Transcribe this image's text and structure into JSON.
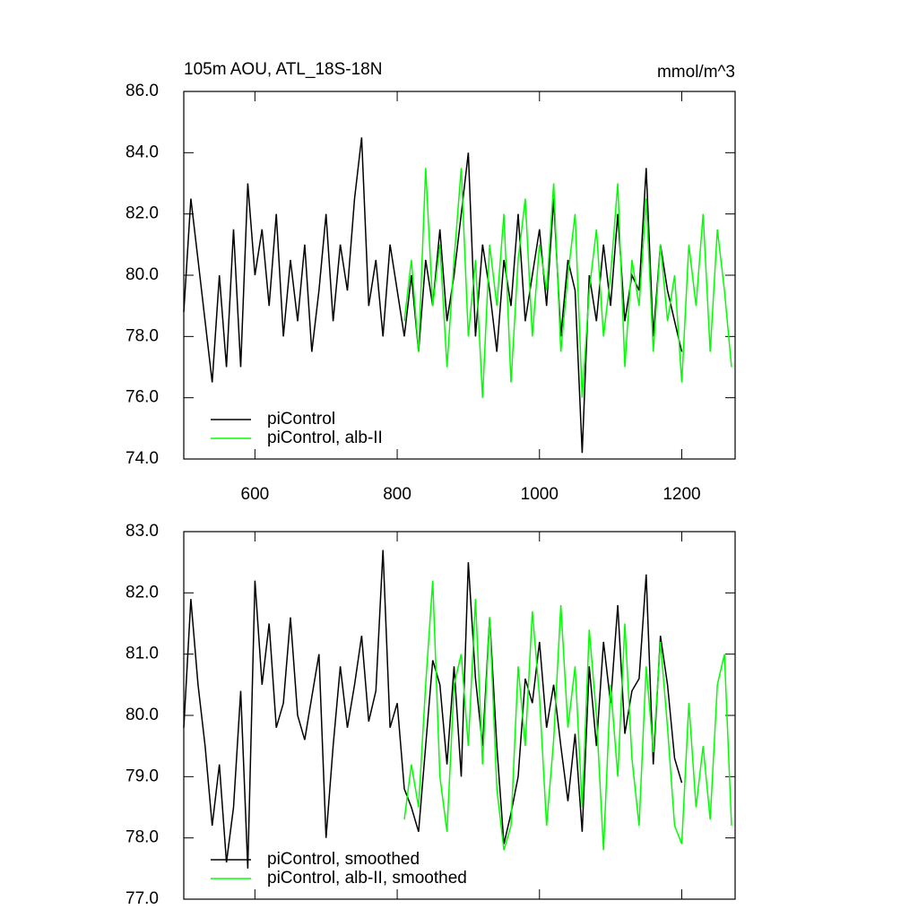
{
  "chart_data": [
    {
      "type": "line",
      "title": "105m AOU, ATL_18S-18N",
      "units": "mmol/m^3",
      "xlim": [
        500,
        1275
      ],
      "ylim": [
        74,
        86
      ],
      "xticks": [
        600,
        800,
        1000,
        1200
      ],
      "yticks": [
        {
          "value": 74,
          "label": "74.0"
        },
        {
          "value": 76,
          "label": "76.0"
        },
        {
          "value": 78,
          "label": "78.0"
        },
        {
          "value": 80,
          "label": "80.0"
        },
        {
          "value": 82,
          "label": "82.0"
        },
        {
          "value": 84,
          "label": "84.0"
        },
        {
          "value": 86,
          "label": "86.0"
        }
      ],
      "legend": "lower left",
      "series": [
        {
          "name": "piControl",
          "color": "#000000",
          "x": [
            500,
            510,
            520,
            530,
            540,
            550,
            560,
            570,
            580,
            590,
            600,
            610,
            620,
            630,
            640,
            650,
            660,
            670,
            680,
            690,
            700,
            710,
            720,
            730,
            740,
            750,
            760,
            770,
            780,
            790,
            800,
            810,
            820,
            830,
            840,
            850,
            860,
            870,
            880,
            890,
            900,
            910,
            920,
            930,
            940,
            950,
            960,
            970,
            980,
            990,
            1000,
            1010,
            1020,
            1030,
            1040,
            1050,
            1060,
            1070,
            1080,
            1090,
            1100,
            1110,
            1120,
            1130,
            1140,
            1150,
            1160,
            1170,
            1180,
            1190,
            1200
          ],
          "values": [
            78.8,
            82.5,
            80.5,
            78.5,
            76.5,
            80.0,
            77.0,
            81.5,
            77.0,
            83.0,
            80.0,
            81.5,
            79.0,
            82.0,
            78.0,
            80.5,
            78.5,
            81.0,
            77.5,
            79.5,
            82.0,
            78.5,
            81.0,
            79.5,
            82.5,
            84.5,
            79.0,
            80.5,
            78.0,
            81.0,
            79.5,
            78.0,
            80.0,
            77.5,
            80.5,
            79.0,
            81.5,
            78.5,
            80.0,
            82.0,
            84.0,
            78.0,
            81.0,
            79.5,
            77.5,
            80.5,
            79.0,
            82.0,
            78.5,
            80.0,
            81.5,
            79.0,
            82.5,
            78.0,
            80.5,
            79.5,
            74.2,
            80.0,
            78.5,
            81.0,
            79.0,
            82.0,
            78.5,
            80.0,
            79.5,
            83.5,
            78.0,
            81.0,
            79.5,
            78.5,
            77.5
          ]
        },
        {
          "name": "piControl, alb-II",
          "color": "#00ff00",
          "x": [
            810,
            820,
            830,
            840,
            850,
            860,
            870,
            880,
            890,
            900,
            910,
            920,
            930,
            940,
            950,
            960,
            970,
            980,
            990,
            1000,
            1010,
            1020,
            1030,
            1040,
            1050,
            1060,
            1070,
            1080,
            1090,
            1100,
            1110,
            1120,
            1130,
            1140,
            1150,
            1160,
            1170,
            1180,
            1190,
            1200,
            1210,
            1220,
            1230,
            1240,
            1250,
            1260,
            1270
          ],
          "values": [
            78.5,
            80.5,
            77.5,
            83.5,
            79,
            81,
            77,
            80.5,
            83.5,
            78,
            80.5,
            76,
            81,
            79,
            82,
            76.5,
            80.5,
            82.5,
            78,
            81,
            79.5,
            83,
            77.5,
            80,
            82,
            76,
            79.5,
            81.5,
            78,
            80,
            83,
            77,
            80.5,
            79,
            82.5,
            77.5,
            81,
            78.5,
            80,
            76.5,
            81,
            79,
            82,
            77.5,
            81.5,
            79.5,
            77
          ]
        }
      ]
    },
    {
      "type": "line",
      "xlim": [
        500,
        1275
      ],
      "ylim": [
        77,
        83
      ],
      "xticks": [
        600,
        800,
        1000,
        1200
      ],
      "yticks": [
        {
          "value": 77,
          "label": "77.0"
        },
        {
          "value": 78,
          "label": "78.0"
        },
        {
          "value": 79,
          "label": "79.0"
        },
        {
          "value": 80,
          "label": "80.0"
        },
        {
          "value": 81,
          "label": "81.0"
        },
        {
          "value": 82,
          "label": "82.0"
        },
        {
          "value": 83,
          "label": "83.0"
        }
      ],
      "legend": "lower left",
      "series": [
        {
          "name": "piControl, smoothed",
          "color": "#000000",
          "x": [
            500,
            510,
            520,
            530,
            540,
            550,
            560,
            570,
            580,
            590,
            600,
            610,
            620,
            630,
            640,
            650,
            660,
            670,
            680,
            690,
            700,
            710,
            720,
            730,
            740,
            750,
            760,
            770,
            780,
            790,
            800,
            810,
            820,
            830,
            840,
            850,
            860,
            870,
            880,
            890,
            900,
            910,
            920,
            930,
            940,
            950,
            960,
            970,
            980,
            990,
            1000,
            1010,
            1020,
            1030,
            1040,
            1050,
            1060,
            1070,
            1080,
            1090,
            1100,
            1110,
            1120,
            1130,
            1140,
            1150,
            1160,
            1170,
            1180,
            1190,
            1200
          ],
          "values": [
            79.8,
            81.9,
            80.5,
            79.5,
            78.2,
            79.2,
            77.6,
            78.5,
            80.4,
            77.5,
            82.2,
            80.5,
            81.5,
            79.8,
            80.2,
            81.6,
            80.0,
            79.6,
            80.3,
            81.0,
            78.0,
            79.5,
            80.8,
            79.8,
            80.5,
            81.3,
            79.9,
            80.4,
            82.7,
            79.8,
            80.2,
            78.8,
            78.5,
            78.1,
            79.5,
            80.9,
            80.5,
            79.2,
            80.8,
            79.0,
            82.5,
            80.6,
            79.5,
            81.6,
            79.5,
            77.9,
            78.4,
            79.0,
            80.6,
            80.2,
            81.2,
            79.8,
            80.5,
            79.5,
            78.6,
            79.7,
            78.1,
            80.8,
            79.5,
            81.2,
            80.2,
            81.8,
            79.7,
            80.4,
            80.6,
            82.3,
            79.2,
            81.3,
            80.5,
            79.3,
            78.9
          ]
        },
        {
          "name": "piControl, alb-II, smoothed",
          "color": "#00ff00",
          "x": [
            810,
            820,
            830,
            840,
            850,
            860,
            870,
            880,
            890,
            900,
            910,
            920,
            930,
            940,
            950,
            960,
            970,
            980,
            990,
            1000,
            1010,
            1020,
            1030,
            1040,
            1050,
            1060,
            1070,
            1080,
            1090,
            1100,
            1110,
            1120,
            1130,
            1140,
            1150,
            1160,
            1170,
            1180,
            1190,
            1200,
            1210,
            1220,
            1230,
            1240,
            1250,
            1260,
            1270
          ],
          "values": [
            78.3,
            79.2,
            78.5,
            80.5,
            82.2,
            79,
            78.1,
            80.5,
            81,
            79.5,
            81.9,
            79.2,
            81.6,
            78.8,
            77.8,
            78.2,
            80.8,
            79.5,
            81.7,
            80.3,
            78.2,
            79.6,
            81.8,
            79.8,
            80.8,
            78.5,
            81.4,
            80,
            77.8,
            80.5,
            79,
            81.5,
            79.3,
            78.2,
            80.8,
            79.4,
            81.2,
            79.8,
            78.2,
            77.9,
            80.2,
            78.5,
            79.5,
            78.3,
            80.5,
            81,
            78.2
          ]
        }
      ]
    }
  ]
}
